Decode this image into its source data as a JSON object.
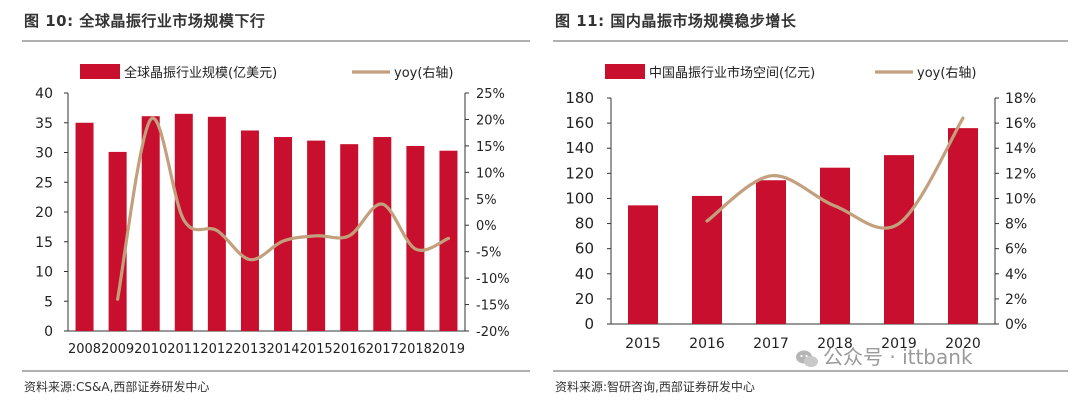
{
  "chart_data": [
    {
      "type": "bar",
      "figure_label": "图 10:",
      "title": "全球晶振行业市场规模下行",
      "categories": [
        "2008",
        "2009",
        "2010",
        "2011",
        "2012",
        "2013",
        "2014",
        "2015",
        "2016",
        "2017",
        "2018",
        "2019"
      ],
      "series": [
        {
          "name": "全球晶振行业规模(亿美元)",
          "kind": "bar",
          "axis": "left",
          "color": "#c8102e",
          "values": [
            35.0,
            30.1,
            36.1,
            36.5,
            36.0,
            33.7,
            32.6,
            32.0,
            31.4,
            32.6,
            31.1,
            30.3
          ]
        },
        {
          "name": "yoy(右轴)",
          "kind": "line",
          "axis": "right",
          "color": "#c3a07d",
          "values": [
            null,
            -14.0,
            20.0,
            1.0,
            -1.0,
            -6.5,
            -3.0,
            -2.0,
            -2.0,
            4.0,
            -4.5,
            -2.5
          ]
        }
      ],
      "y_left": {
        "min": 0,
        "max": 40,
        "step": 5,
        "ticks": [
          "0",
          "5",
          "10",
          "15",
          "20",
          "25",
          "30",
          "35",
          "40"
        ]
      },
      "y_right": {
        "min": -20,
        "max": 25,
        "step": 5,
        "ticks": [
          "-20%",
          "-15%",
          "-10%",
          "-5%",
          "0%",
          "5%",
          "10%",
          "15%",
          "20%",
          "25%"
        ]
      },
      "legend_position": "top",
      "source": "资料来源:CS&A,西部证券研发中心"
    },
    {
      "type": "bar",
      "figure_label": "图 11:",
      "title": "国内晶振市场规模稳步增长",
      "categories": [
        "2015",
        "2016",
        "2017",
        "2018",
        "2019",
        "2020"
      ],
      "series": [
        {
          "name": "中国晶振行业市场空间(亿元)",
          "kind": "bar",
          "axis": "left",
          "color": "#c8102e",
          "values": [
            94.5,
            102.0,
            114.5,
            124.5,
            134.5,
            156.0
          ]
        },
        {
          "name": "yoy(右轴)",
          "kind": "line",
          "axis": "right",
          "color": "#c3a07d",
          "values": [
            null,
            8.2,
            11.8,
            9.4,
            8.0,
            16.4
          ]
        }
      ],
      "y_left": {
        "min": 0,
        "max": 180,
        "step": 20,
        "ticks": [
          "0",
          "20",
          "40",
          "60",
          "80",
          "100",
          "120",
          "140",
          "160",
          "180"
        ]
      },
      "y_right": {
        "min": 0,
        "max": 18,
        "step": 2,
        "ticks": [
          "0%",
          "2%",
          "4%",
          "6%",
          "8%",
          "10%",
          "12%",
          "14%",
          "16%",
          "18%"
        ]
      },
      "legend_position": "top",
      "source": "资料来源:智研咨询,西部证券研发中心"
    }
  ],
  "watermark": "公众号 · ittbank"
}
